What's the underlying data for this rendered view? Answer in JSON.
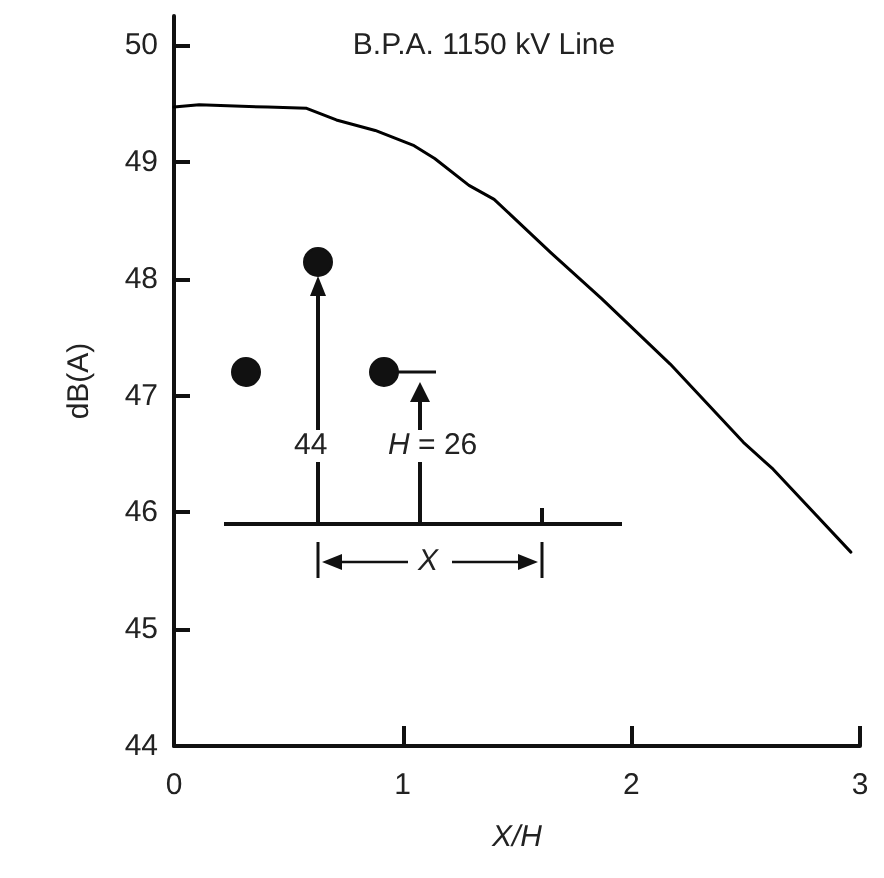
{
  "chart_data": {
    "type": "line",
    "title": "B.P.A. 1150 kV Line",
    "xlabel": "X/H",
    "ylabel": "dB(A)",
    "annotations": [
      "44",
      "H = 26",
      "X"
    ],
    "x": [
      0,
      0.11,
      0.41,
      0.58,
      0.71,
      0.88,
      1.05,
      1.14,
      1.29,
      1.4,
      1.65,
      1.87,
      2.17,
      2.49,
      2.62,
      2.96
    ],
    "series": [
      {
        "color": "#000000",
        "values": [
          49.47,
          49.49,
          49.47,
          49.46,
          49.36,
          49.27,
          49.14,
          49.03,
          48.8,
          48.68,
          48.22,
          47.83,
          47.27,
          46.6,
          46.37,
          45.66
        ]
      }
    ],
    "xlim": [
      0,
      3
    ],
    "ylim": [
      44,
      50.25
    ],
    "xticks": [
      0,
      1,
      2,
      3
    ],
    "yticks": [
      44,
      45,
      46,
      47,
      48,
      49,
      50
    ],
    "grid": false,
    "marker": "none",
    "line_style": "solid"
  }
}
